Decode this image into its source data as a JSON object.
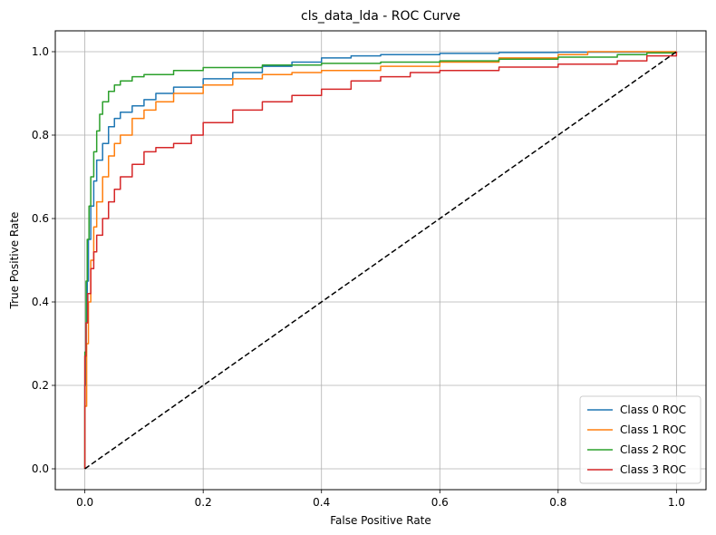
{
  "chart_data": {
    "type": "line",
    "title": "cls_data_lda - ROC Curve",
    "xlabel": "False Positive Rate",
    "ylabel": "True Positive Rate",
    "xlim": [
      -0.05,
      1.05
    ],
    "ylim": [
      -0.05,
      1.05
    ],
    "xticks": [
      "0.0",
      "0.2",
      "0.4",
      "0.6",
      "0.8",
      "1.0"
    ],
    "yticks": [
      "0.0",
      "0.2",
      "0.4",
      "0.6",
      "0.8",
      "1.0"
    ],
    "grid": true,
    "legend_position": "lower-right",
    "series": [
      {
        "name": "Class 0 ROC",
        "color": "#1f77b4",
        "x": [
          0,
          0,
          0.002,
          0.004,
          0.006,
          0.01,
          0.015,
          0.02,
          0.03,
          0.04,
          0.05,
          0.06,
          0.08,
          0.1,
          0.12,
          0.15,
          0.2,
          0.25,
          0.3,
          0.35,
          0.4,
          0.45,
          0.5,
          0.6,
          0.7,
          0.8,
          0.85,
          0.9,
          1.0
        ],
        "y": [
          0,
          0.2,
          0.35,
          0.45,
          0.55,
          0.63,
          0.69,
          0.74,
          0.78,
          0.82,
          0.84,
          0.855,
          0.87,
          0.885,
          0.9,
          0.915,
          0.935,
          0.95,
          0.965,
          0.975,
          0.985,
          0.99,
          0.993,
          0.996,
          0.998,
          0.999,
          0.999,
          0.999,
          1.0
        ]
      },
      {
        "name": "Class 1 ROC",
        "color": "#ff7f0e",
        "x": [
          0,
          0,
          0.003,
          0.006,
          0.01,
          0.015,
          0.02,
          0.03,
          0.04,
          0.05,
          0.06,
          0.08,
          0.1,
          0.12,
          0.15,
          0.2,
          0.25,
          0.3,
          0.35,
          0.4,
          0.5,
          0.6,
          0.7,
          0.8,
          0.85,
          0.9,
          1.0
        ],
        "y": [
          0,
          0.15,
          0.3,
          0.4,
          0.5,
          0.58,
          0.64,
          0.7,
          0.75,
          0.78,
          0.8,
          0.84,
          0.86,
          0.88,
          0.9,
          0.92,
          0.935,
          0.945,
          0.95,
          0.955,
          0.965,
          0.975,
          0.985,
          0.993,
          1.0,
          1.0,
          1.0
        ]
      },
      {
        "name": "Class 2 ROC",
        "color": "#2ca02c",
        "x": [
          0,
          0,
          0.002,
          0.004,
          0.007,
          0.01,
          0.015,
          0.02,
          0.025,
          0.03,
          0.04,
          0.05,
          0.06,
          0.08,
          0.1,
          0.15,
          0.2,
          0.3,
          0.4,
          0.5,
          0.6,
          0.7,
          0.8,
          0.9,
          0.95,
          1.0
        ],
        "y": [
          0,
          0.28,
          0.45,
          0.55,
          0.63,
          0.7,
          0.76,
          0.81,
          0.85,
          0.88,
          0.905,
          0.92,
          0.93,
          0.94,
          0.945,
          0.955,
          0.962,
          0.968,
          0.972,
          0.975,
          0.978,
          0.982,
          0.987,
          0.993,
          0.997,
          1.0
        ]
      },
      {
        "name": "Class 3 ROC",
        "color": "#d62728",
        "x": [
          0,
          0,
          0.002,
          0.005,
          0.01,
          0.015,
          0.02,
          0.03,
          0.04,
          0.05,
          0.06,
          0.08,
          0.1,
          0.12,
          0.15,
          0.18,
          0.2,
          0.25,
          0.3,
          0.35,
          0.4,
          0.45,
          0.5,
          0.55,
          0.6,
          0.7,
          0.8,
          0.9,
          0.95,
          1.0
        ],
        "y": [
          0,
          0.27,
          0.35,
          0.42,
          0.48,
          0.52,
          0.56,
          0.6,
          0.64,
          0.67,
          0.7,
          0.73,
          0.76,
          0.77,
          0.78,
          0.8,
          0.83,
          0.86,
          0.88,
          0.895,
          0.91,
          0.93,
          0.94,
          0.95,
          0.955,
          0.963,
          0.97,
          0.978,
          0.99,
          1.0
        ]
      },
      {
        "name": "",
        "color": "#000000",
        "style": "dashed",
        "x": [
          0,
          1
        ],
        "y": [
          0,
          1
        ]
      }
    ]
  }
}
